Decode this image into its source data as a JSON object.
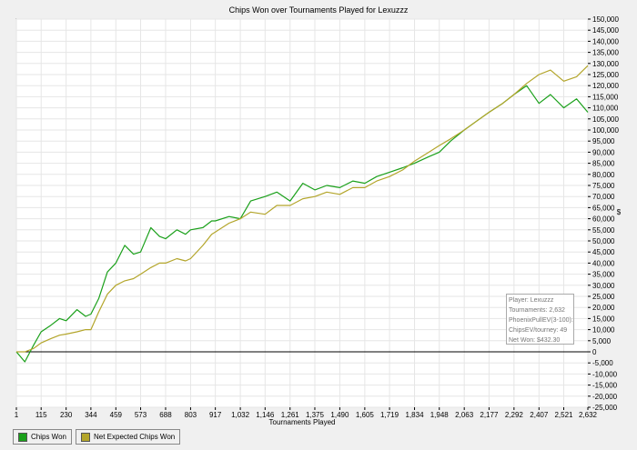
{
  "chart_data": {
    "type": "line",
    "title": "Chips Won over Tournaments Played for  Lexuzzz",
    "xlabel": "Tournaments Played",
    "ylabel": "$",
    "x_ticks": [
      "1",
      "115",
      "230",
      "344",
      "459",
      "573",
      "688",
      "803",
      "917",
      "1,032",
      "1,146",
      "1,261",
      "1,375",
      "1,490",
      "1,605",
      "1,719",
      "1,834",
      "1,948",
      "2,063",
      "2,177",
      "2,292",
      "2,407",
      "2,521",
      "2,632"
    ],
    "y_ticks": [
      "-25,000",
      "-20,000",
      "-15,000",
      "-10,000",
      "-5,000",
      "0",
      "5,000",
      "10,000",
      "15,000",
      "20,000",
      "25,000",
      "30,000",
      "35,000",
      "40,000",
      "45,000",
      "50,000",
      "55,000",
      "60,000",
      "65,000",
      "70,000",
      "75,000",
      "80,000",
      "85,000",
      "90,000",
      "95,000",
      "100,000",
      "105,000",
      "110,000",
      "115,000",
      "120,000",
      "125,000",
      "130,000",
      "135,000",
      "140,000",
      "145,000",
      "150,000"
    ],
    "xlim": [
      1,
      2632
    ],
    "ylim": [
      -25000,
      150000
    ],
    "grid": true,
    "legend_position": "bottom-left",
    "x": [
      1,
      40,
      80,
      115,
      160,
      200,
      230,
      280,
      320,
      344,
      380,
      420,
      459,
      500,
      540,
      573,
      620,
      660,
      688,
      740,
      780,
      803,
      860,
      900,
      917,
      980,
      1032,
      1080,
      1146,
      1200,
      1261,
      1320,
      1375,
      1430,
      1490,
      1550,
      1605,
      1660,
      1719,
      1780,
      1834,
      1900,
      1948,
      2000,
      2063,
      2120,
      2177,
      2240,
      2292,
      2350,
      2407,
      2460,
      2521,
      2580,
      2632
    ],
    "series": [
      {
        "name": "Chips Won",
        "color": "#1aa01a",
        "values": [
          0,
          -4500,
          3000,
          9000,
          12000,
          15000,
          14000,
          19000,
          16000,
          17000,
          24000,
          36000,
          40000,
          48000,
          44000,
          45000,
          56000,
          52000,
          51000,
          55000,
          53000,
          55000,
          56000,
          59000,
          59000,
          61000,
          60000,
          68000,
          70000,
          72000,
          68000,
          76000,
          73000,
          75000,
          74000,
          77000,
          76000,
          79000,
          81000,
          83000,
          85000,
          88000,
          90000,
          95000,
          100000,
          104000,
          108000,
          112000,
          116000,
          120000,
          112000,
          116000,
          110000,
          114000,
          108000
        ]
      },
      {
        "name": "Net Expected Chips Won",
        "color": "#b3a52a",
        "values": [
          0,
          0,
          1500,
          4000,
          6000,
          7500,
          8000,
          9000,
          10000,
          10000,
          18000,
          26000,
          30000,
          32000,
          33000,
          35000,
          38000,
          40000,
          40000,
          42000,
          41000,
          42000,
          48000,
          53000,
          54000,
          58000,
          60000,
          63000,
          62000,
          66000,
          66000,
          69000,
          70000,
          72000,
          71000,
          74000,
          74000,
          77000,
          79000,
          82000,
          86000,
          90000,
          93000,
          96000,
          100000,
          104000,
          108000,
          112000,
          116000,
          121000,
          125000,
          127000,
          122000,
          124000,
          129000
        ]
      }
    ]
  },
  "info_box": {
    "player": "Player: Lexuzzz",
    "tournaments": "Tournaments: 2,632",
    "phoenix": "PhoenixPullEV(3-100): $1,020.52",
    "chips_ev": "ChipsEV/tourney: 49",
    "net_won": "Net Won: $432.30"
  }
}
